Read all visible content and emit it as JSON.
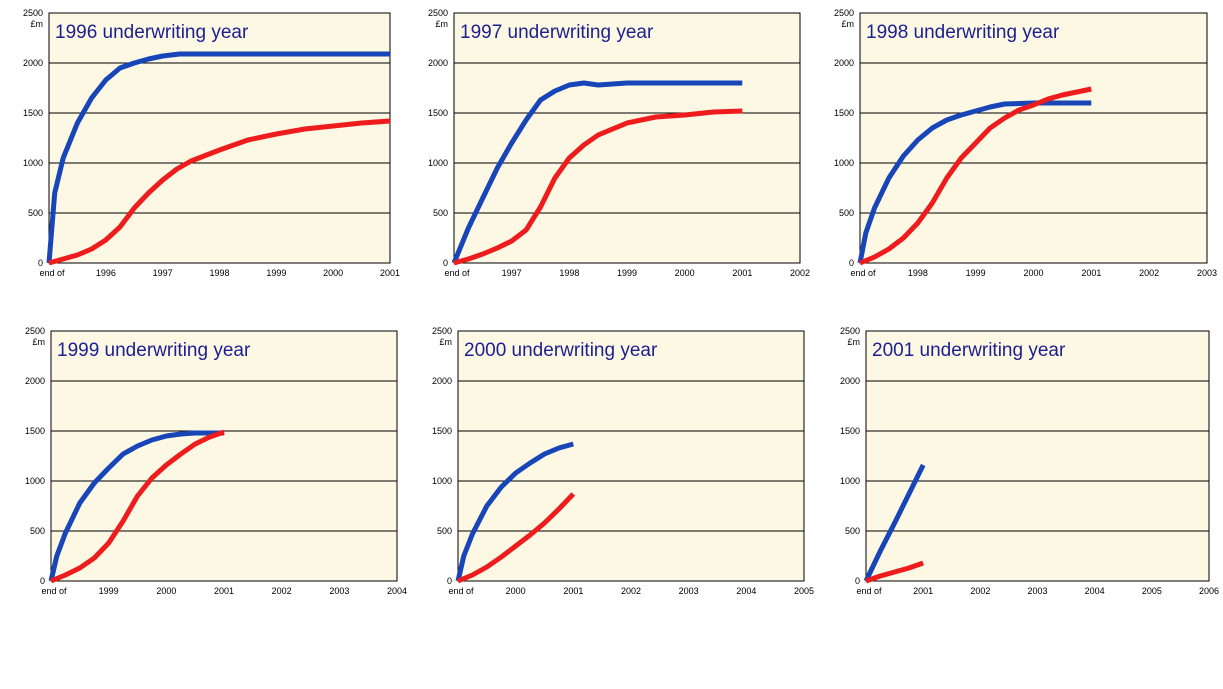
{
  "colors": {
    "plot_background": "#fdf8e4",
    "gridline": "#000000",
    "title_text": "#1b1f8f",
    "series_blue": "#1845b8",
    "series_red": "#ee1c1c"
  },
  "chart_data": [
    {
      "type": "line",
      "title": "1996 underwriting year",
      "unit_label": "£m",
      "ylim": [
        0,
        2500
      ],
      "yticks": [
        "0",
        "500",
        "1000",
        "1500",
        "2000",
        "2500"
      ],
      "xlim": [
        1995,
        2001
      ],
      "xticks": [
        {
          "x": 1995,
          "label": "end of"
        },
        {
          "x": 1996,
          "label": "1996"
        },
        {
          "x": 1997,
          "label": "1997"
        },
        {
          "x": 1998,
          "label": "1998"
        },
        {
          "x": 1999,
          "label": "1999"
        },
        {
          "x": 2000,
          "label": "2000"
        },
        {
          "x": 2001,
          "label": "2001"
        }
      ],
      "grid": true,
      "series": [
        {
          "color": "#1845b8",
          "points": [
            [
              1995,
              0
            ],
            [
              1995.1,
              700
            ],
            [
              1995.25,
              1050
            ],
            [
              1995.5,
              1400
            ],
            [
              1995.75,
              1650
            ],
            [
              1996,
              1830
            ],
            [
              1996.25,
              1950
            ],
            [
              1996.5,
              2000
            ],
            [
              1996.75,
              2040
            ],
            [
              1997,
              2070
            ],
            [
              1997.3,
              2090
            ],
            [
              1998,
              2090
            ],
            [
              1999,
              2090
            ],
            [
              2000,
              2090
            ],
            [
              2001,
              2090
            ]
          ]
        },
        {
          "color": "#ee1c1c",
          "points": [
            [
              1995,
              0
            ],
            [
              1995.25,
              40
            ],
            [
              1995.5,
              80
            ],
            [
              1995.75,
              140
            ],
            [
              1996,
              230
            ],
            [
              1996.25,
              360
            ],
            [
              1996.5,
              550
            ],
            [
              1996.75,
              700
            ],
            [
              1997,
              830
            ],
            [
              1997.25,
              940
            ],
            [
              1997.5,
              1020
            ],
            [
              1998,
              1130
            ],
            [
              1998.5,
              1230
            ],
            [
              1999,
              1290
            ],
            [
              1999.5,
              1340
            ],
            [
              2000,
              1370
            ],
            [
              2000.5,
              1400
            ],
            [
              2001,
              1420
            ]
          ]
        }
      ]
    },
    {
      "type": "line",
      "title": "1997 underwriting year",
      "unit_label": "£m",
      "ylim": [
        0,
        2500
      ],
      "yticks": [
        "0",
        "500",
        "1000",
        "1500",
        "2000",
        "2500"
      ],
      "xlim": [
        1996,
        2002
      ],
      "xticks": [
        {
          "x": 1996,
          "label": "end of"
        },
        {
          "x": 1997,
          "label": "1997"
        },
        {
          "x": 1998,
          "label": "1998"
        },
        {
          "x": 1999,
          "label": "1999"
        },
        {
          "x": 2000,
          "label": "2000"
        },
        {
          "x": 2001,
          "label": "2001"
        },
        {
          "x": 2002,
          "label": "2002"
        }
      ],
      "grid": true,
      "series": [
        {
          "color": "#1845b8",
          "points": [
            [
              1996,
              0
            ],
            [
              1996.25,
              350
            ],
            [
              1996.5,
              650
            ],
            [
              1996.75,
              950
            ],
            [
              1997,
              1200
            ],
            [
              1997.25,
              1430
            ],
            [
              1997.5,
              1630
            ],
            [
              1997.75,
              1720
            ],
            [
              1998,
              1780
            ],
            [
              1998.25,
              1800
            ],
            [
              1998.5,
              1780
            ],
            [
              1998.75,
              1790
            ],
            [
              1999,
              1800
            ],
            [
              2000,
              1800
            ],
            [
              2001,
              1800
            ]
          ]
        },
        {
          "color": "#ee1c1c",
          "points": [
            [
              1996,
              0
            ],
            [
              1996.25,
              40
            ],
            [
              1996.5,
              90
            ],
            [
              1996.75,
              150
            ],
            [
              1997,
              220
            ],
            [
              1997.25,
              330
            ],
            [
              1997.5,
              560
            ],
            [
              1997.75,
              850
            ],
            [
              1998,
              1050
            ],
            [
              1998.25,
              1180
            ],
            [
              1998.5,
              1280
            ],
            [
              1998.75,
              1340
            ],
            [
              1999,
              1400
            ],
            [
              1999.5,
              1460
            ],
            [
              2000,
              1480
            ],
            [
              2000.5,
              1510
            ],
            [
              2001,
              1520
            ]
          ]
        }
      ]
    },
    {
      "type": "line",
      "title": "1998 underwriting year",
      "unit_label": "£m",
      "ylim": [
        0,
        2500
      ],
      "yticks": [
        "0",
        "500",
        "1000",
        "1500",
        "2000",
        "2500"
      ],
      "xlim": [
        1997,
        2003
      ],
      "xticks": [
        {
          "x": 1997,
          "label": "end of"
        },
        {
          "x": 1998,
          "label": "1998"
        },
        {
          "x": 1999,
          "label": "1999"
        },
        {
          "x": 2000,
          "label": "2000"
        },
        {
          "x": 2001,
          "label": "2001"
        },
        {
          "x": 2002,
          "label": "2002"
        },
        {
          "x": 2003,
          "label": "2003"
        }
      ],
      "grid": true,
      "series": [
        {
          "color": "#1845b8",
          "points": [
            [
              1997,
              0
            ],
            [
              1997.1,
              300
            ],
            [
              1997.25,
              550
            ],
            [
              1997.5,
              850
            ],
            [
              1997.75,
              1070
            ],
            [
              1998,
              1230
            ],
            [
              1998.25,
              1350
            ],
            [
              1998.5,
              1430
            ],
            [
              1998.75,
              1480
            ],
            [
              1999,
              1520
            ],
            [
              1999.25,
              1560
            ],
            [
              1999.5,
              1590
            ],
            [
              2000,
              1600
            ],
            [
              2000.5,
              1600
            ],
            [
              2001,
              1600
            ]
          ]
        },
        {
          "color": "#ee1c1c",
          "points": [
            [
              1997,
              0
            ],
            [
              1997.25,
              60
            ],
            [
              1997.5,
              140
            ],
            [
              1997.75,
              250
            ],
            [
              1998,
              400
            ],
            [
              1998.25,
              600
            ],
            [
              1998.5,
              850
            ],
            [
              1998.75,
              1050
            ],
            [
              1999,
              1200
            ],
            [
              1999.25,
              1350
            ],
            [
              1999.5,
              1450
            ],
            [
              1999.75,
              1530
            ],
            [
              2000,
              1580
            ],
            [
              2000.25,
              1640
            ],
            [
              2000.5,
              1680
            ],
            [
              2000.75,
              1710
            ],
            [
              2001,
              1740
            ]
          ]
        }
      ]
    },
    {
      "type": "line",
      "title": "1999 underwriting year",
      "unit_label": "£m",
      "ylim": [
        0,
        2500
      ],
      "yticks": [
        "0",
        "500",
        "1000",
        "1500",
        "2000",
        "2500"
      ],
      "xlim": [
        1998,
        2004
      ],
      "xticks": [
        {
          "x": 1998,
          "label": "end of"
        },
        {
          "x": 1999,
          "label": "1999"
        },
        {
          "x": 2000,
          "label": "2000"
        },
        {
          "x": 2001,
          "label": "2001"
        },
        {
          "x": 2002,
          "label": "2002"
        },
        {
          "x": 2003,
          "label": "2003"
        },
        {
          "x": 2004,
          "label": "2004"
        }
      ],
      "grid": true,
      "series": [
        {
          "color": "#1845b8",
          "points": [
            [
              1998,
              0
            ],
            [
              1998.1,
              250
            ],
            [
              1998.25,
              480
            ],
            [
              1998.5,
              780
            ],
            [
              1998.75,
              980
            ],
            [
              1999,
              1130
            ],
            [
              1999.25,
              1270
            ],
            [
              1999.5,
              1350
            ],
            [
              1999.75,
              1410
            ],
            [
              2000,
              1450
            ],
            [
              2000.25,
              1470
            ],
            [
              2000.5,
              1480
            ],
            [
              2001,
              1480
            ]
          ]
        },
        {
          "color": "#ee1c1c",
          "points": [
            [
              1998,
              0
            ],
            [
              1998.25,
              60
            ],
            [
              1998.5,
              130
            ],
            [
              1998.75,
              230
            ],
            [
              1999,
              380
            ],
            [
              1999.25,
              600
            ],
            [
              1999.5,
              850
            ],
            [
              1999.75,
              1030
            ],
            [
              2000,
              1160
            ],
            [
              2000.25,
              1270
            ],
            [
              2000.5,
              1370
            ],
            [
              2000.75,
              1440
            ],
            [
              2001,
              1490
            ]
          ]
        }
      ]
    },
    {
      "type": "line",
      "title": "2000 underwriting year",
      "unit_label": "£m",
      "ylim": [
        0,
        2500
      ],
      "yticks": [
        "0",
        "500",
        "1000",
        "1500",
        "2000",
        "2500"
      ],
      "xlim": [
        1999,
        2005
      ],
      "xticks": [
        {
          "x": 1999,
          "label": "end of"
        },
        {
          "x": 2000,
          "label": "2000"
        },
        {
          "x": 2001,
          "label": "2001"
        },
        {
          "x": 2002,
          "label": "2002"
        },
        {
          "x": 2003,
          "label": "2003"
        },
        {
          "x": 2004,
          "label": "2004"
        },
        {
          "x": 2005,
          "label": "2005"
        }
      ],
      "grid": true,
      "series": [
        {
          "color": "#1845b8",
          "points": [
            [
              1999,
              0
            ],
            [
              1999.1,
              250
            ],
            [
              1999.25,
              470
            ],
            [
              1999.5,
              750
            ],
            [
              1999.75,
              940
            ],
            [
              2000,
              1080
            ],
            [
              2000.25,
              1180
            ],
            [
              2000.5,
              1270
            ],
            [
              2000.75,
              1330
            ],
            [
              2001,
              1370
            ]
          ]
        },
        {
          "color": "#ee1c1c",
          "points": [
            [
              1999,
              0
            ],
            [
              1999.25,
              60
            ],
            [
              1999.5,
              140
            ],
            [
              1999.75,
              240
            ],
            [
              2000,
              350
            ],
            [
              2000.25,
              460
            ],
            [
              2000.5,
              580
            ],
            [
              2000.75,
              720
            ],
            [
              2001,
              870
            ]
          ]
        }
      ]
    },
    {
      "type": "line",
      "title": "2001 underwriting year",
      "unit_label": "£m",
      "ylim": [
        0,
        2500
      ],
      "yticks": [
        "0",
        "500",
        "1000",
        "1500",
        "2000",
        "2500"
      ],
      "xlim": [
        2000,
        2006
      ],
      "xticks": [
        {
          "x": 2000,
          "label": "end of"
        },
        {
          "x": 2001,
          "label": "2001"
        },
        {
          "x": 2002,
          "label": "2002"
        },
        {
          "x": 2003,
          "label": "2003"
        },
        {
          "x": 2004,
          "label": "2004"
        },
        {
          "x": 2005,
          "label": "2005"
        },
        {
          "x": 2006,
          "label": "2006"
        }
      ],
      "grid": true,
      "series": [
        {
          "color": "#1845b8",
          "points": [
            [
              2000,
              0
            ],
            [
              2000.25,
              300
            ],
            [
              2000.5,
              580
            ],
            [
              2000.75,
              870
            ],
            [
              2001,
              1160
            ]
          ]
        },
        {
          "color": "#ee1c1c",
          "points": [
            [
              2000,
              0
            ],
            [
              2000.25,
              50
            ],
            [
              2000.5,
              90
            ],
            [
              2000.75,
              130
            ],
            [
              2001,
              180
            ]
          ]
        }
      ]
    }
  ]
}
